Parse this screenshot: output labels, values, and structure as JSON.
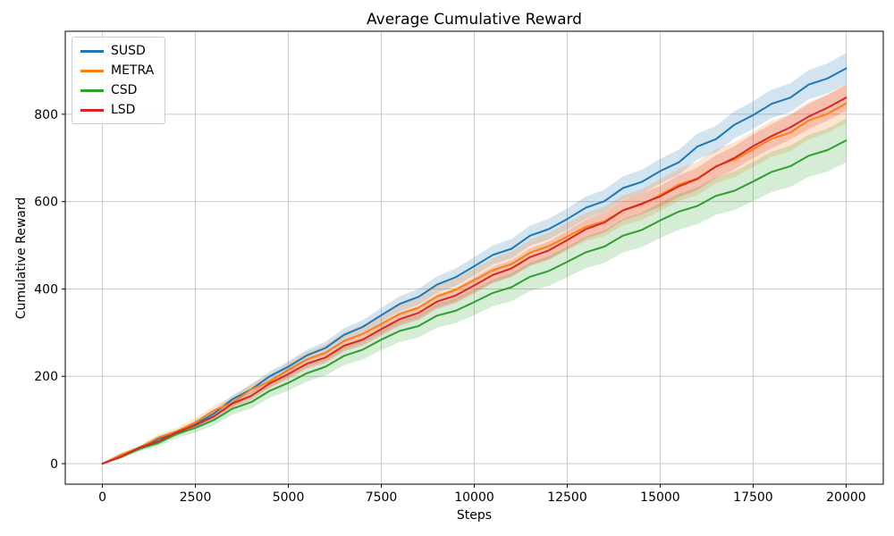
{
  "chart_data": {
    "type": "line",
    "title": "Average Cumulative Reward",
    "xlabel": "Steps",
    "ylabel": "Cumulative Reward",
    "grid": true,
    "legend_position": "upper-left",
    "xlim": [
      -1000,
      21000
    ],
    "ylim": [
      -47,
      990
    ],
    "xticks": [
      0,
      2500,
      5000,
      7500,
      10000,
      12500,
      15000,
      17500,
      20000
    ],
    "yticks": [
      0,
      200,
      400,
      600,
      800
    ],
    "grid_color": "#c9c9c9",
    "spine_color": "#000000",
    "band_alpha": 0.2,
    "x": [
      0,
      500,
      1000,
      1500,
      2000,
      2500,
      3000,
      3500,
      4000,
      4500,
      5000,
      5500,
      6000,
      6500,
      7000,
      7500,
      8000,
      8500,
      9000,
      9500,
      10000,
      10500,
      11000,
      11500,
      12000,
      12500,
      13000,
      13500,
      14000,
      14500,
      15000,
      15500,
      16000,
      16500,
      17000,
      17500,
      18000,
      18500,
      19000,
      19500,
      20000
    ],
    "series": [
      {
        "name": "SUSD",
        "color": "#1f77b4",
        "band_max": 35,
        "values": [
          0,
          18,
          34,
          57,
          70,
          90,
          115,
          148,
          170,
          200,
          222,
          248,
          265,
          295,
          313,
          340,
          366,
          382,
          410,
          427,
          452,
          478,
          492,
          522,
          537,
          560,
          586,
          601,
          631,
          645,
          670,
          690,
          726,
          743,
          776,
          798,
          824,
          838,
          868,
          882,
          905
        ]
      },
      {
        "name": "METRA",
        "color": "#ff7f0e",
        "band_max": 45,
        "values": [
          0,
          21,
          37,
          60,
          74,
          95,
          122,
          140,
          170,
          188,
          215,
          239,
          254,
          281,
          297,
          320,
          343,
          357,
          383,
          398,
          420,
          443,
          457,
          483,
          498,
          520,
          542,
          555,
          580,
          593,
          615,
          639,
          653,
          681,
          696,
          720,
          744,
          758,
          786,
          801,
          825
        ]
      },
      {
        "name": "CSD",
        "color": "#2ca02c",
        "band_max": 50,
        "values": [
          0,
          15,
          34,
          47,
          68,
          82,
          100,
          126,
          141,
          167,
          185,
          207,
          222,
          247,
          261,
          284,
          304,
          315,
          339,
          350,
          370,
          391,
          404,
          428,
          441,
          462,
          484,
          497,
          522,
          535,
          557,
          577,
          590,
          613,
          625,
          646,
          668,
          681,
          705,
          718,
          740
        ]
      },
      {
        "name": "LSD",
        "color": "#d62728",
        "band_max": 30,
        "values": [
          0,
          16,
          37,
          51,
          72,
          88,
          108,
          138,
          155,
          184,
          205,
          229,
          243,
          270,
          284,
          308,
          331,
          345,
          371,
          385,
          408,
          432,
          447,
          473,
          488,
          512,
          537,
          552,
          580,
          595,
          612,
          635,
          652,
          680,
          700,
          727,
          750,
          770,
          795,
          815,
          838
        ]
      }
    ]
  }
}
